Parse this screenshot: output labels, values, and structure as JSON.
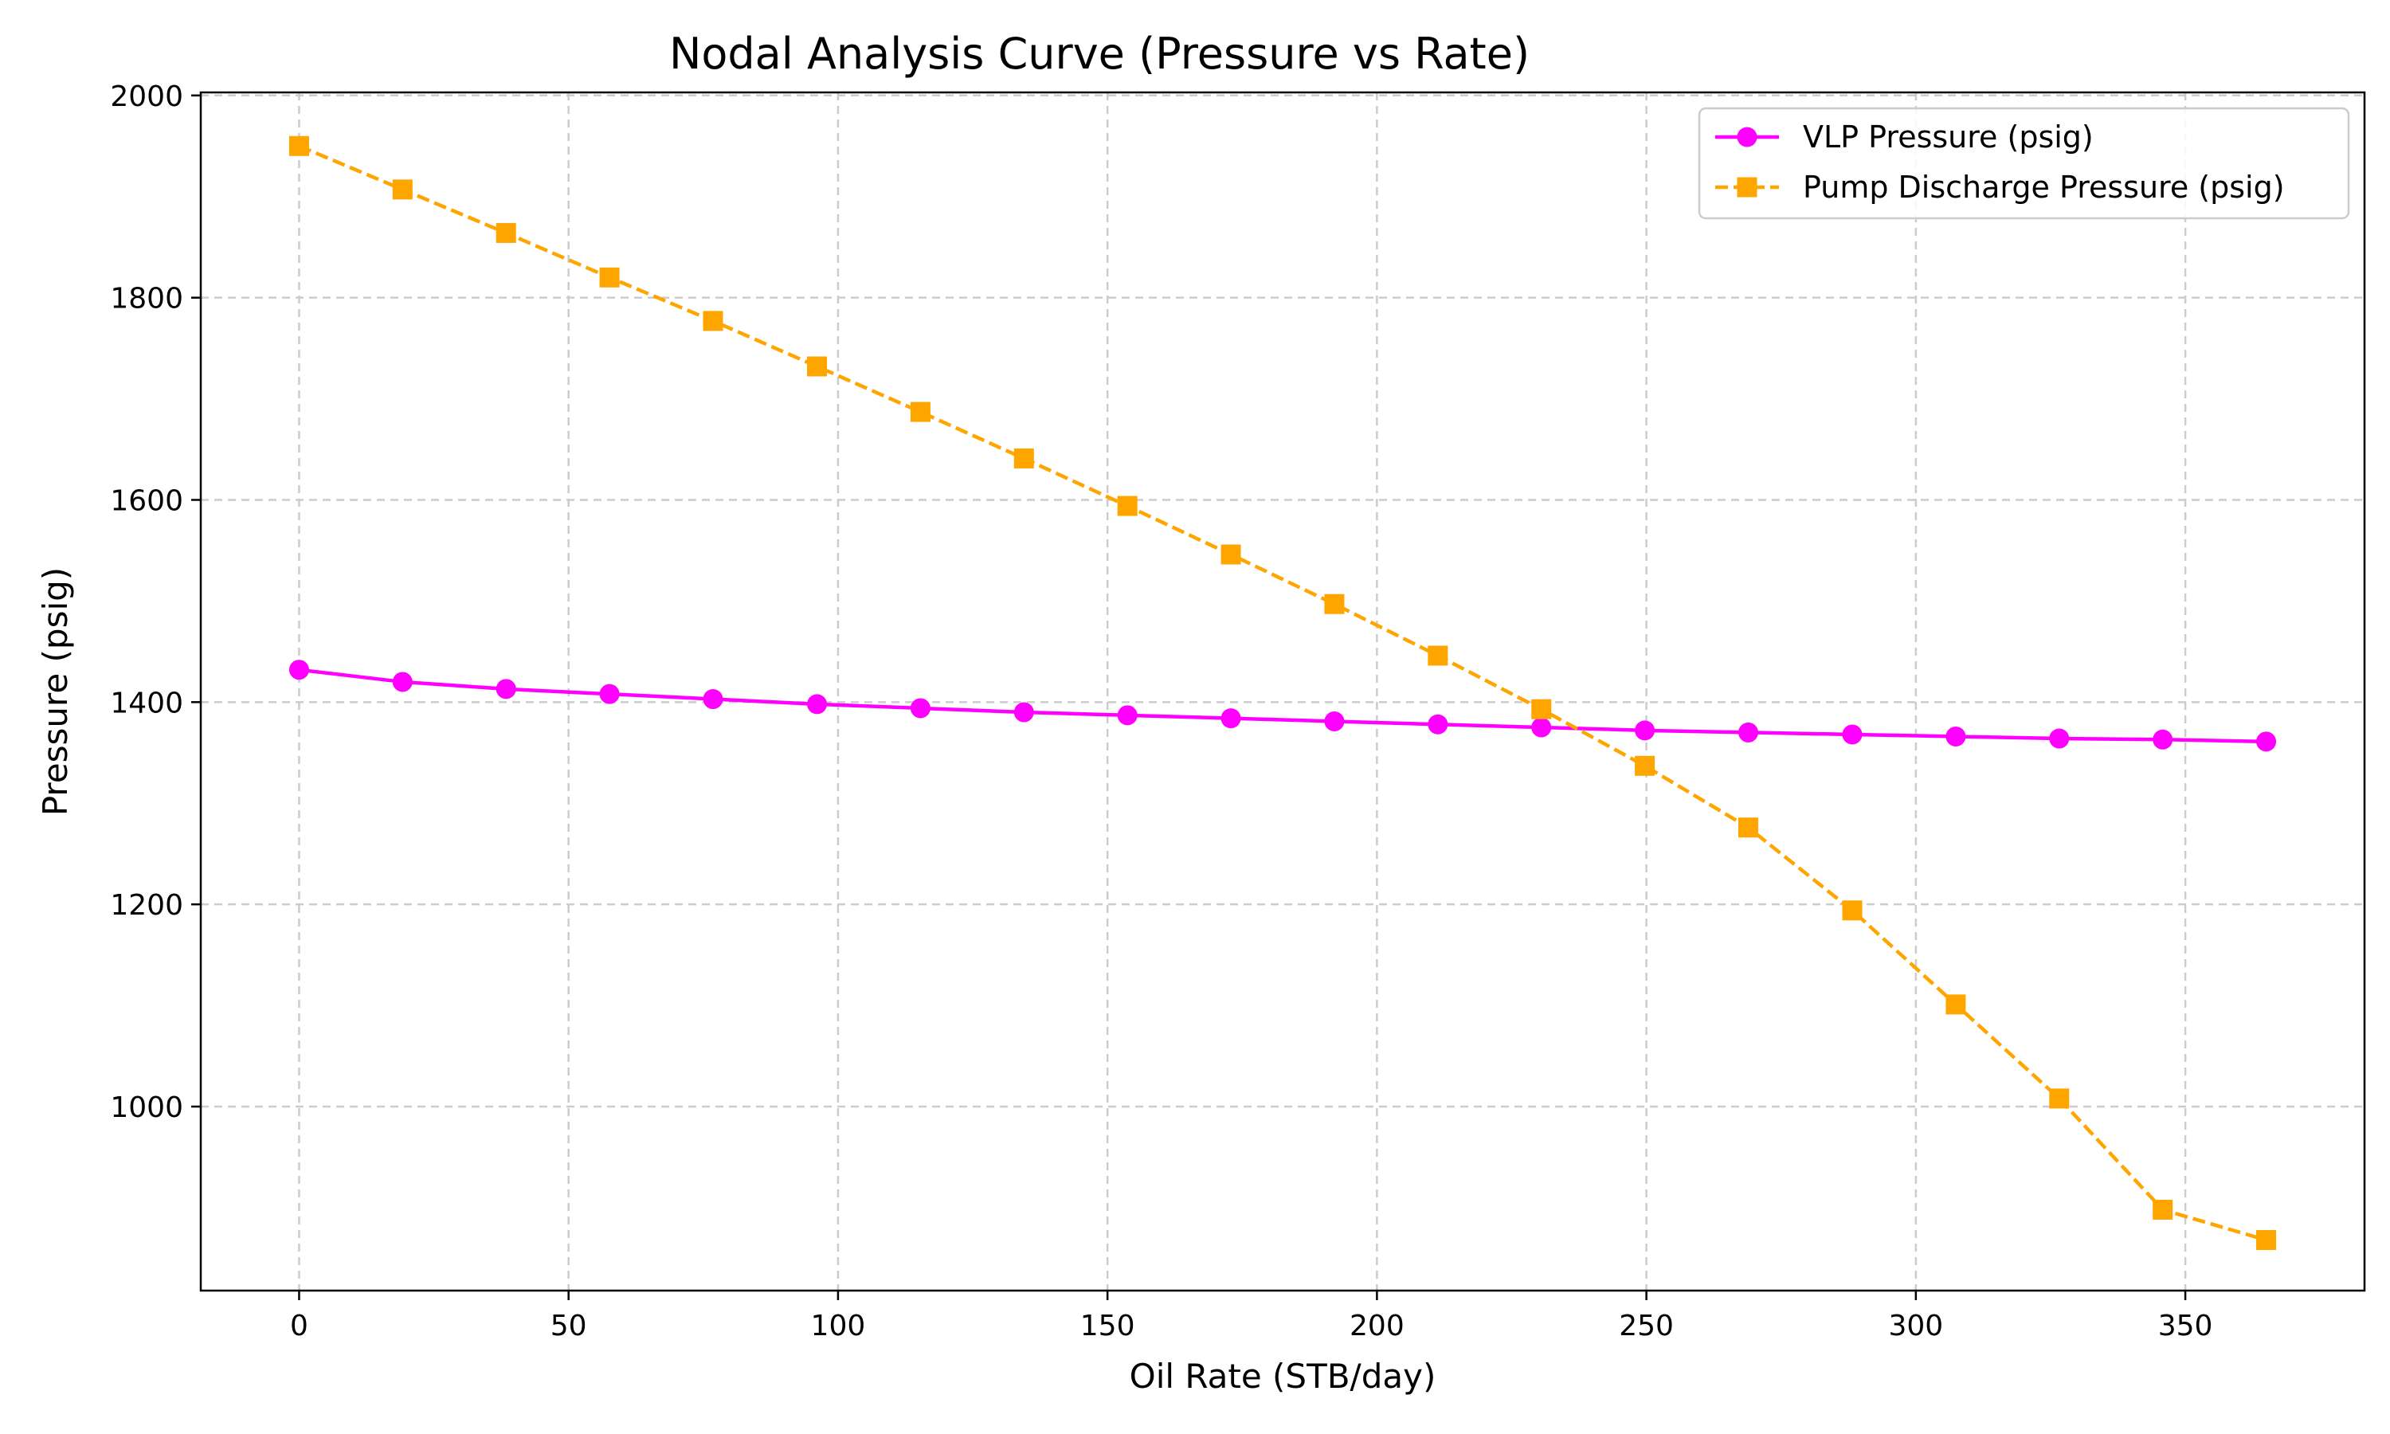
{
  "chart_data": {
    "type": "line",
    "title": "Nodal Analysis Curve (Pressure vs Rate)",
    "xlabel": "Oil Rate (STB/day)",
    "ylabel": "Pressure (psig)",
    "xlim": [
      -18.25,
      383.25
    ],
    "ylim": [
      818,
      2003
    ],
    "xticks": [
      0,
      50,
      100,
      150,
      200,
      250,
      300,
      350
    ],
    "yticks": [
      1000,
      1200,
      1400,
      1600,
      1800,
      2000
    ],
    "grid": true,
    "legend_position": "top-right",
    "x": [
      0,
      19.2,
      38.4,
      57.6,
      76.8,
      96.1,
      115.3,
      134.5,
      153.7,
      172.9,
      192.1,
      211.3,
      230.5,
      249.7,
      268.9,
      288.2,
      307.4,
      326.6,
      345.8,
      365
    ],
    "series": [
      {
        "name": "VLP Pressure (psig)",
        "color": "#ff00ff",
        "marker": "circle",
        "line": "solid",
        "values": [
          1432,
          1420,
          1413,
          1408,
          1403,
          1398,
          1394,
          1390,
          1387,
          1384,
          1381,
          1378,
          1375,
          1372,
          1370,
          1368,
          1366,
          1364,
          1363,
          1361
        ]
      },
      {
        "name": "Pump Discharge Pressure (psig)",
        "color": "#ffa500",
        "marker": "square",
        "line": "dashed",
        "values": [
          1950,
          1907,
          1864,
          1820,
          1777,
          1732,
          1687,
          1641,
          1594,
          1546,
          1497,
          1446,
          1393,
          1337,
          1276,
          1194,
          1101,
          1008,
          898,
          868
        ]
      }
    ]
  }
}
